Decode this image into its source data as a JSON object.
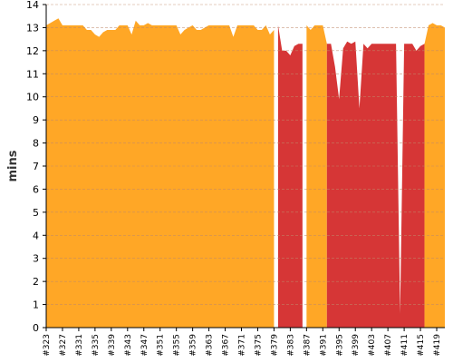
{
  "chart_data": {
    "type": "area",
    "ylabel": "mins",
    "xlabel": "",
    "ylim": [
      0,
      14
    ],
    "y_ticks": [
      0,
      1,
      2,
      3,
      4,
      5,
      6,
      7,
      8,
      9,
      10,
      11,
      12,
      13,
      14
    ],
    "grid": true,
    "x_tick_labels": [
      "#323",
      "#327",
      "#331",
      "#335",
      "#339",
      "#343",
      "#347",
      "#351",
      "#355",
      "#359",
      "#363",
      "#367",
      "#371",
      "#375",
      "#379",
      "#383",
      "#387",
      "#391",
      "#395",
      "#399",
      "#403",
      "#407",
      "#411",
      "#415",
      "#419"
    ],
    "x_start": 323,
    "x_end": 421,
    "values": [
      13.1,
      13.2,
      13.3,
      13.4,
      13.1,
      13.1,
      13.1,
      13.1,
      13.1,
      13.1,
      12.9,
      12.9,
      12.7,
      12.6,
      12.8,
      12.9,
      12.9,
      12.9,
      13.1,
      13.1,
      13.1,
      12.7,
      13.3,
      13.1,
      13.1,
      13.2,
      13.1,
      13.1,
      13.1,
      13.1,
      13.1,
      13.1,
      13.1,
      12.7,
      12.9,
      13.0,
      13.1,
      12.9,
      12.9,
      13.0,
      13.1,
      13.1,
      13.1,
      13.1,
      13.1,
      13.1,
      12.6,
      13.1,
      13.1,
      13.1,
      13.1,
      13.1,
      12.9,
      12.9,
      13.1,
      12.7,
      12.9,
      13.1,
      12.0,
      12.0,
      11.8,
      12.2,
      12.3,
      12.3,
      13.1,
      12.9,
      13.1,
      13.1,
      13.1,
      12.3,
      12.3,
      11.3,
      9.9,
      12.1,
      12.4,
      12.3,
      12.4,
      9.5,
      12.3,
      12.1,
      12.3,
      12.3,
      12.3,
      12.3,
      12.3,
      12.3,
      12.3,
      0.6,
      12.3,
      12.3,
      12.3,
      12.0,
      12.2,
      12.3,
      13.1,
      13.2,
      13.1,
      13.1,
      13.0,
      13.4,
      13.2
    ],
    "series": [
      {
        "status": "success",
        "color": "#ffa726"
      },
      {
        "status": "failure",
        "color": "#d63636"
      }
    ],
    "segments": [
      {
        "from": 323,
        "to": 379,
        "status": "success"
      },
      {
        "from": 380,
        "to": 386,
        "status": "failure"
      },
      {
        "from": 387,
        "to": 392,
        "status": "success"
      },
      {
        "from": 392,
        "to": 416,
        "status": "failure"
      },
      {
        "from": 416,
        "to": 421,
        "status": "success"
      }
    ]
  },
  "colors": {
    "axis": "#000000",
    "grid": "#c08a6a",
    "background": "#ffffff"
  }
}
